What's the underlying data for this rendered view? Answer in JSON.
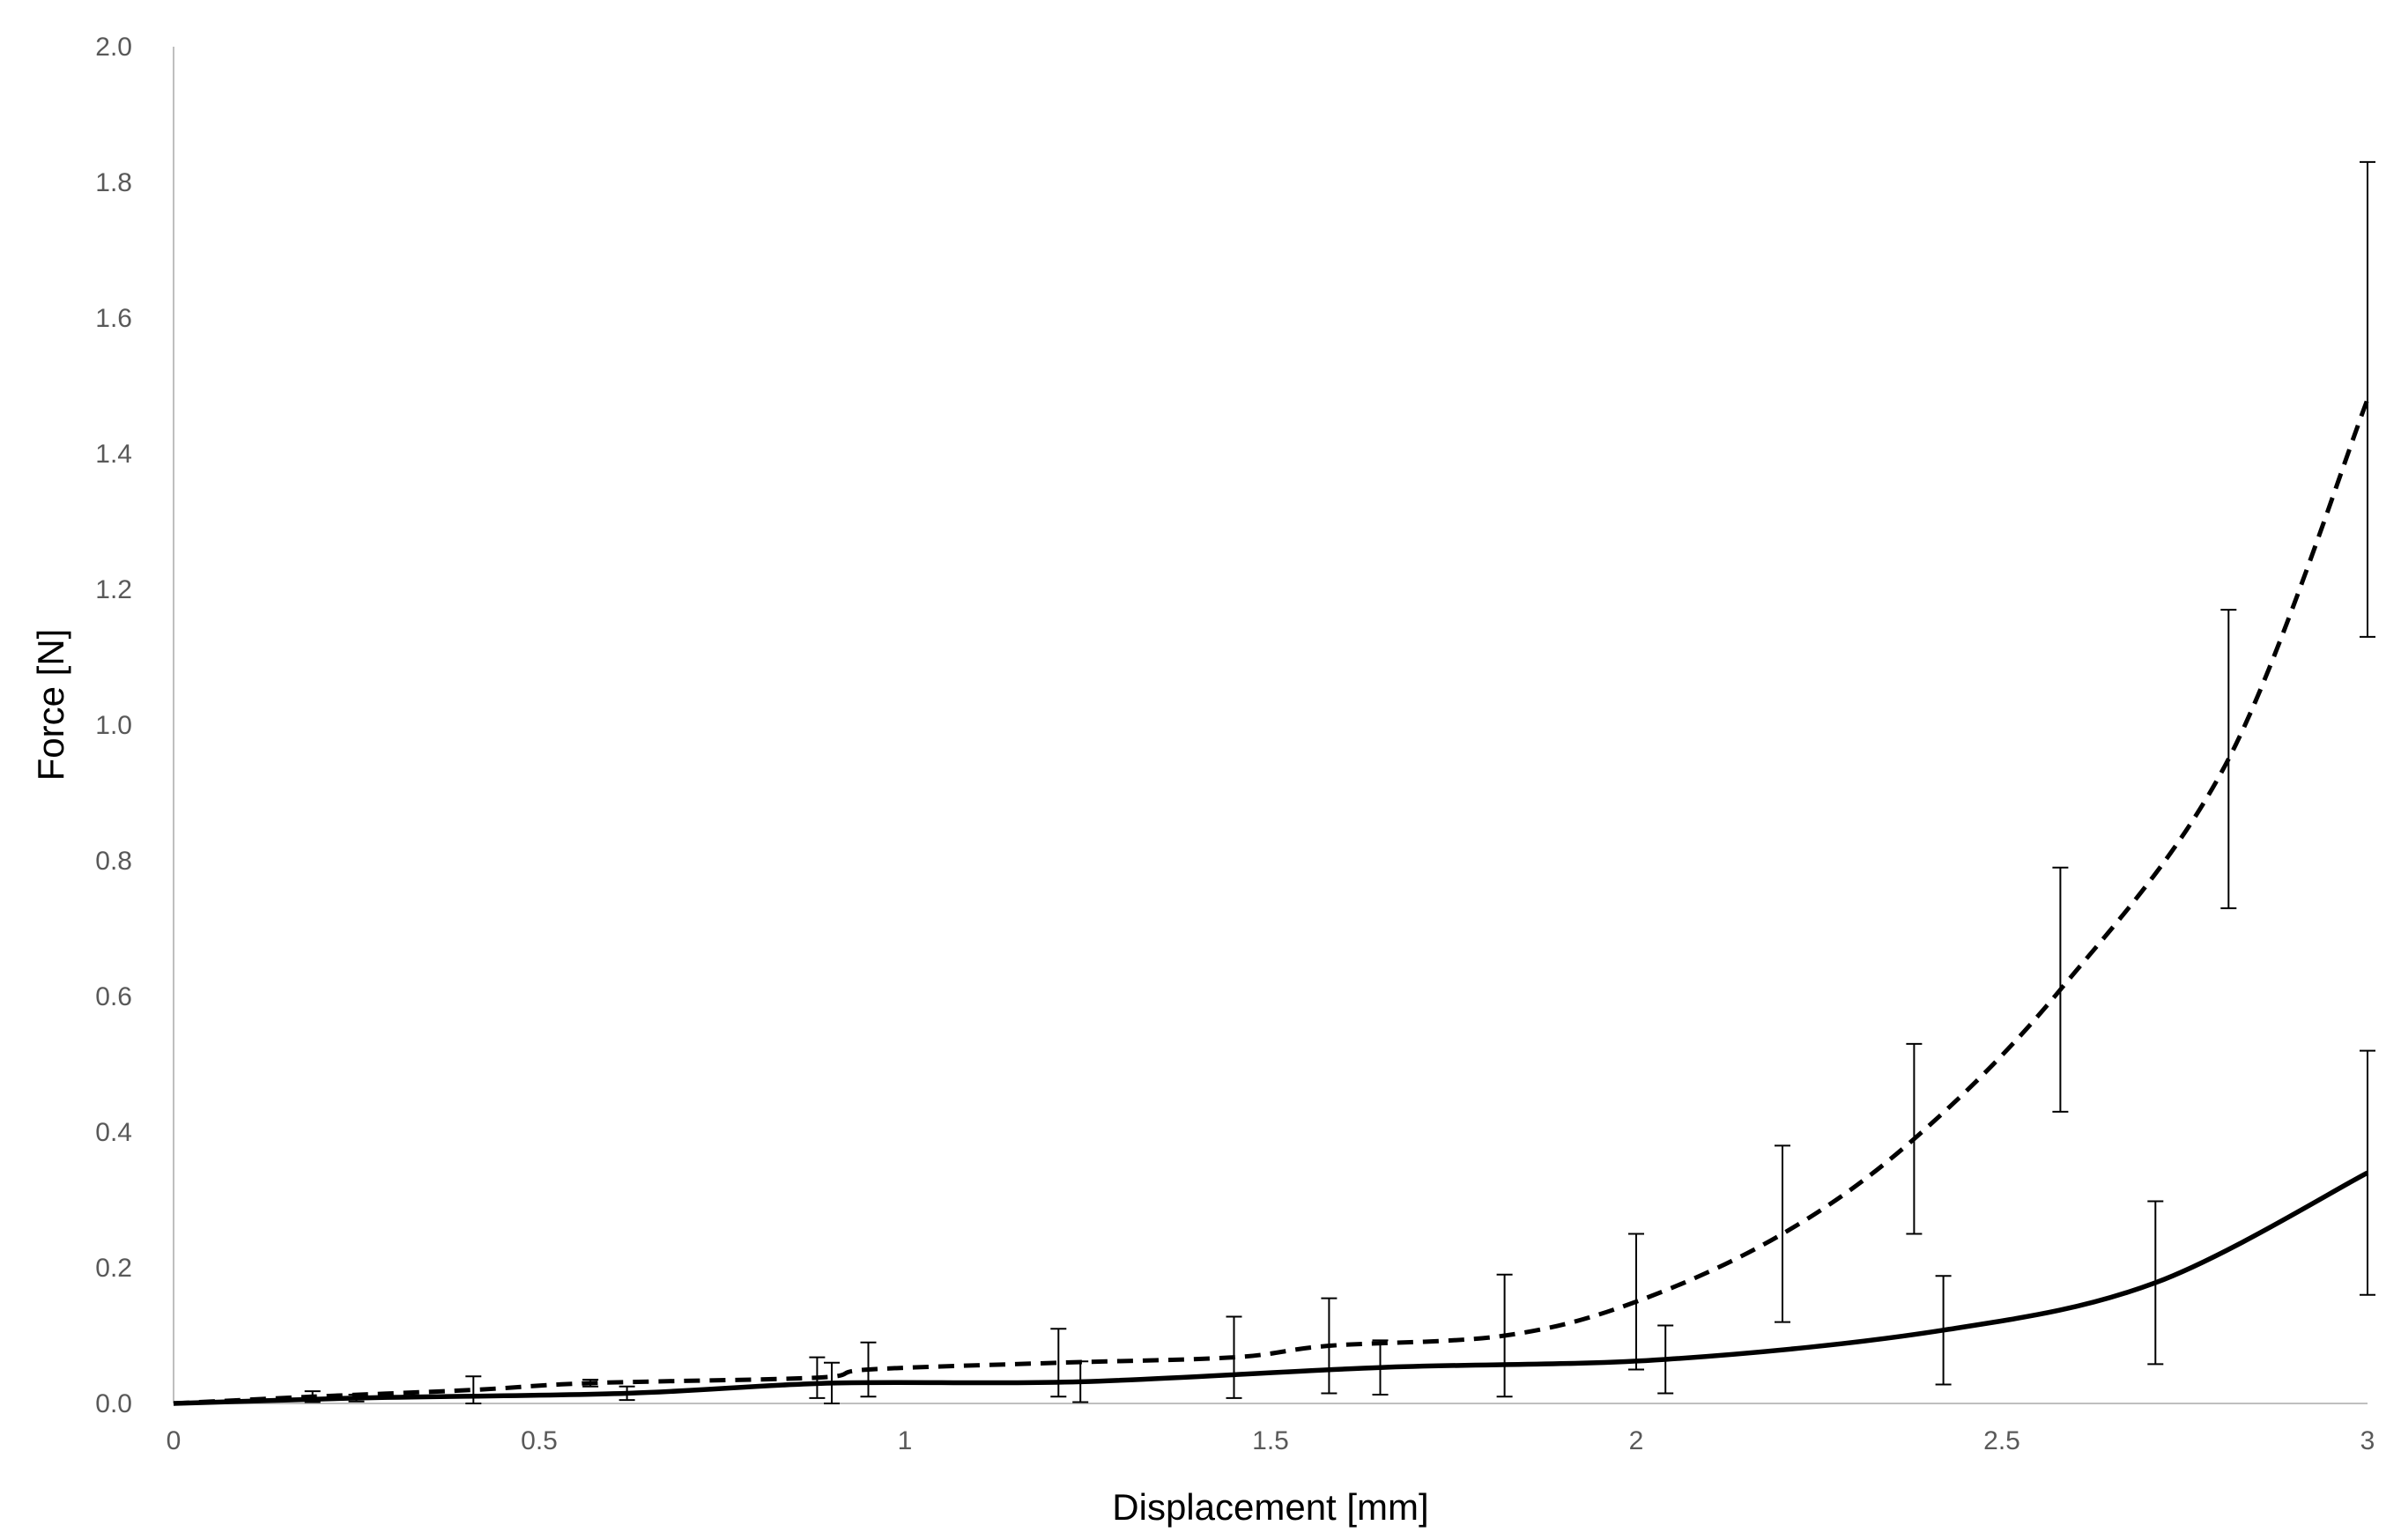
{
  "chart_data": {
    "type": "line",
    "xlabel": "Displacement [mm]",
    "ylabel": "Force [N]",
    "xlim": [
      0,
      3
    ],
    "ylim": [
      0,
      2.0
    ],
    "x_ticks": [
      "0",
      "0.5",
      "1",
      "1.5",
      "2",
      "2.5",
      "3"
    ],
    "x_tick_values": [
      0,
      0.5,
      1,
      1.5,
      2,
      2.5,
      3
    ],
    "y_ticks": [
      "0.0",
      "0.2",
      "0.4",
      "0.6",
      "0.8",
      "1.0",
      "1.2",
      "1.4",
      "1.6",
      "1.8",
      "2.0"
    ],
    "y_tick_values": [
      0,
      0.2,
      0.4,
      0.6,
      0.8,
      1.0,
      1.2,
      1.4,
      1.6,
      1.8,
      2.0
    ],
    "grid": false,
    "series": [
      {
        "style": "solid",
        "color": "#000000",
        "x": [
          0,
          0.25,
          0.62,
          0.9,
          1.24,
          1.65,
          2.04,
          2.42,
          2.71,
          3.0
        ],
        "y": [
          0,
          0.008,
          0.015,
          0.03,
          0.032,
          0.053,
          0.065,
          0.108,
          0.178,
          0.34
        ],
        "error": [
          0.005,
          0.005,
          0.01,
          0.03,
          0.03,
          0.04,
          0.05,
          0.08,
          0.12,
          0.18
        ]
      },
      {
        "style": "dashed",
        "color": "#000000",
        "x": [
          0,
          0.19,
          0.41,
          0.57,
          0.88,
          0.95,
          1.21,
          1.45,
          1.58,
          1.82,
          2.0,
          2.2,
          2.38,
          2.58,
          2.81,
          3.0
        ],
        "y": [
          0,
          0.01,
          0.02,
          0.03,
          0.038,
          0.05,
          0.06,
          0.068,
          0.085,
          0.1,
          0.15,
          0.25,
          0.39,
          0.61,
          0.95,
          1.48
        ],
        "error": [
          0.005,
          0.008,
          0.02,
          0.005,
          0.03,
          0.04,
          0.05,
          0.06,
          0.07,
          0.09,
          0.1,
          0.13,
          0.14,
          0.18,
          0.22,
          0.35
        ]
      }
    ]
  }
}
